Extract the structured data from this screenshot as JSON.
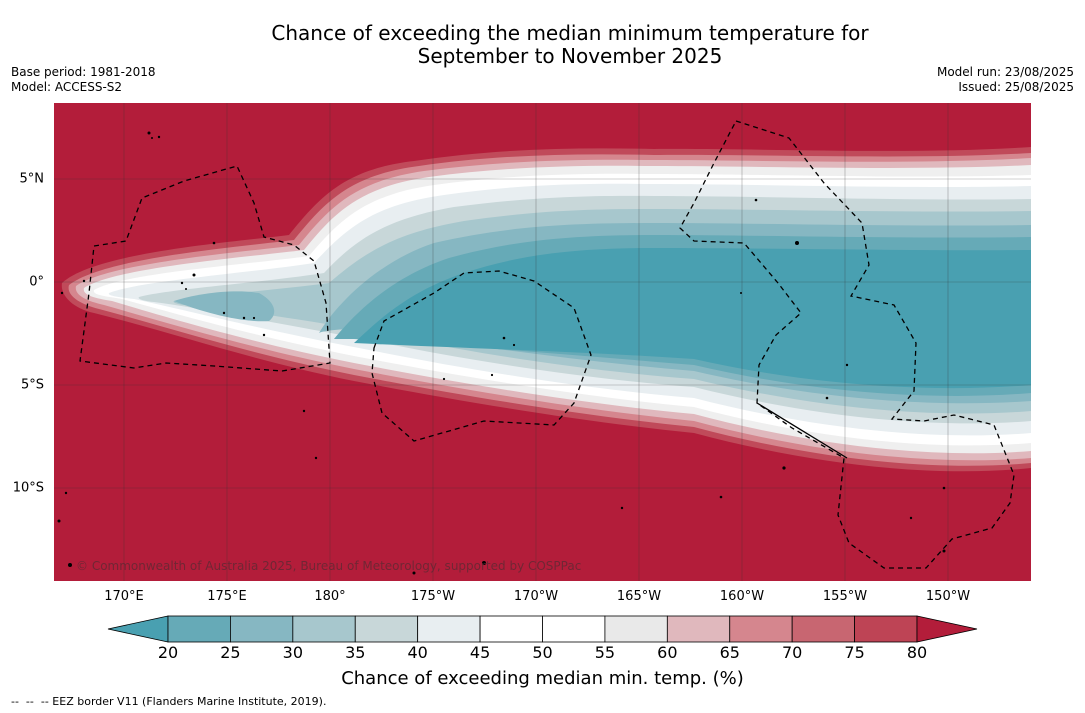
{
  "title_line1": "Chance of exceeding the median minimum temperature for",
  "title_line2": "September to November 2025",
  "base_period": "Base period: 1981-2018",
  "model": "Model: ACCESS-S2",
  "model_run": "Model run: 23/08/2025",
  "issued": "Issued: 25/08/2025",
  "lat_labels": [
    "5°N",
    "0°",
    "5°S",
    "10°S"
  ],
  "lon_labels": [
    "170°E",
    "175°E",
    "180°",
    "175°W",
    "170°W",
    "165°W",
    "160°W",
    "155°W",
    "150°W"
  ],
  "copyright": "© Commonwealth of Australia 2025, Bureau of Meteorology, supported by COSPPac",
  "colorbar": {
    "ticks": [
      "20",
      "25",
      "30",
      "35",
      "40",
      "45",
      "50",
      "55",
      "60",
      "65",
      "70",
      "75",
      "80"
    ],
    "colors": [
      "#66aab7",
      "#86b7c2",
      "#a7c7cd",
      "#c8d7d9",
      "#e8eef1",
      "#ffffff",
      "#ffffff",
      "#e9e9e9",
      "#e0b8bd",
      "#d5868e",
      "#c86671",
      "#be4455"
    ],
    "low_extend_color": "#49a0b1",
    "high_extend_color": "#b31d3a",
    "label": "Chance of exceeding median min. temp. (%)"
  },
  "footnote": "--  --  -- EEZ border V11 (Flanders Marine Institute, 2019).",
  "map_colors": {
    "warm": "#b31d3a",
    "cool": "#49a0b1"
  }
}
